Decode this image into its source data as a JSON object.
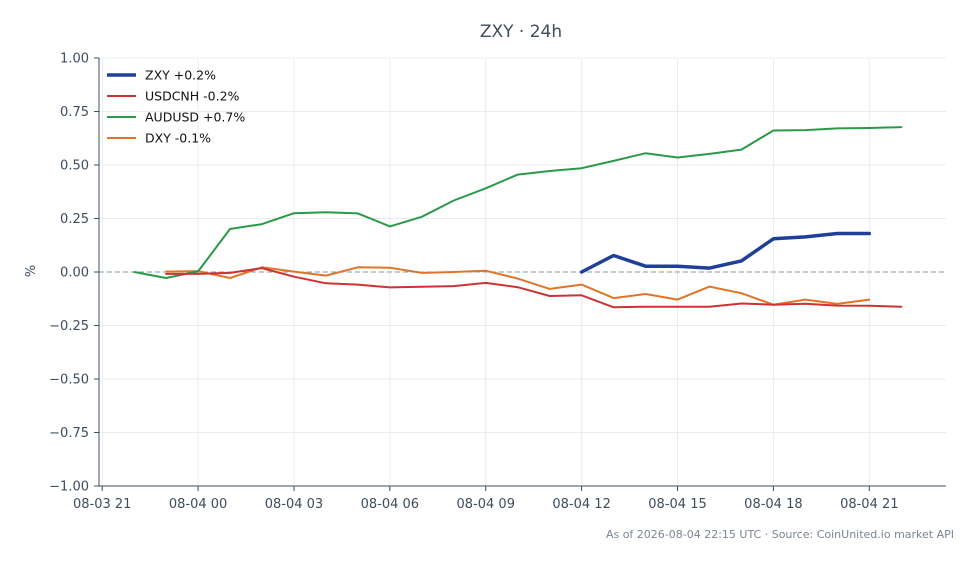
{
  "chart_data": {
    "type": "line",
    "title": "ZXY · 24h",
    "ylabel": "%",
    "xlabel": "",
    "ylim": [
      -1.0,
      1.0
    ],
    "y_ticks": [
      1.0,
      0.75,
      0.5,
      0.25,
      0.0,
      -0.25,
      -0.5,
      -0.75,
      -1.0
    ],
    "y_tick_labels": [
      "1.00",
      "0.75",
      "0.50",
      "0.25",
      "0.00",
      "−0.25",
      "−0.50",
      "−0.75",
      "−1.00"
    ],
    "x_range_hours": [
      -3.1,
      23.4
    ],
    "x_ticks_hours": [
      -3,
      0,
      3,
      6,
      9,
      12,
      15,
      18,
      21
    ],
    "x_tick_labels": [
      "08-03 21",
      "08-04 00",
      "08-04 03",
      "08-04 06",
      "08-04 09",
      "08-04 12",
      "08-04 15",
      "08-04 18",
      "08-04 21"
    ],
    "grid": true,
    "zero_line": true,
    "legend_position": "top-left",
    "footer": "As of 2026-08-04 22:15 UTC · Source: CoinUnited.io market API",
    "series": [
      {
        "name": "ZXY +0.2%",
        "color": "#1f3f99",
        "width": 3.5,
        "x": [
          12,
          13,
          14,
          15,
          16,
          17,
          18,
          19,
          20,
          21
        ],
        "values": [
          0.0,
          0.077,
          0.027,
          0.027,
          0.018,
          0.052,
          0.155,
          0.164,
          0.18,
          0.18
        ]
      },
      {
        "name": "USDCNH -0.2%",
        "color": "#cc3333",
        "width": 2,
        "x": [
          -1,
          0,
          1,
          2,
          3,
          4,
          5,
          6,
          7,
          8,
          9,
          10,
          11,
          12,
          13,
          14,
          15,
          16,
          17,
          18,
          19,
          20,
          21,
          22
        ],
        "values": [
          -0.009,
          -0.009,
          -0.004,
          0.018,
          -0.022,
          -0.053,
          -0.059,
          -0.072,
          -0.069,
          -0.066,
          -0.051,
          -0.071,
          -0.112,
          -0.109,
          -0.165,
          -0.162,
          -0.162,
          -0.162,
          -0.147,
          -0.153,
          -0.148,
          -0.157,
          -0.158,
          -0.162
        ]
      },
      {
        "name": "AUDUSD +0.7%",
        "color": "#2a9a4a",
        "width": 2,
        "x": [
          -2,
          -1,
          0,
          1,
          2,
          3,
          4,
          5,
          6,
          7,
          8,
          9,
          10,
          11,
          12,
          13,
          14,
          15,
          16,
          17,
          18,
          19,
          20,
          21,
          22
        ],
        "values": [
          0.0,
          -0.028,
          0.003,
          0.201,
          0.224,
          0.275,
          0.279,
          0.274,
          0.213,
          0.258,
          0.334,
          0.391,
          0.455,
          0.472,
          0.485,
          0.519,
          0.555,
          0.535,
          0.552,
          0.572,
          0.661,
          0.663,
          0.671,
          0.673,
          0.677
        ]
      },
      {
        "name": "DXY -0.1%",
        "color": "#e0752a",
        "width": 2,
        "x": [
          -1,
          0,
          1,
          2,
          3,
          4,
          5,
          6,
          7,
          8,
          9,
          10,
          11,
          12,
          13,
          14,
          15,
          16,
          17,
          18,
          19,
          20,
          21
        ],
        "values": [
          0.002,
          0.004,
          -0.028,
          0.022,
          0.002,
          -0.017,
          0.022,
          0.02,
          -0.004,
          0.0,
          0.006,
          -0.031,
          -0.079,
          -0.059,
          -0.122,
          -0.103,
          -0.129,
          -0.068,
          -0.099,
          -0.153,
          -0.129,
          -0.149,
          -0.129
        ]
      }
    ]
  }
}
